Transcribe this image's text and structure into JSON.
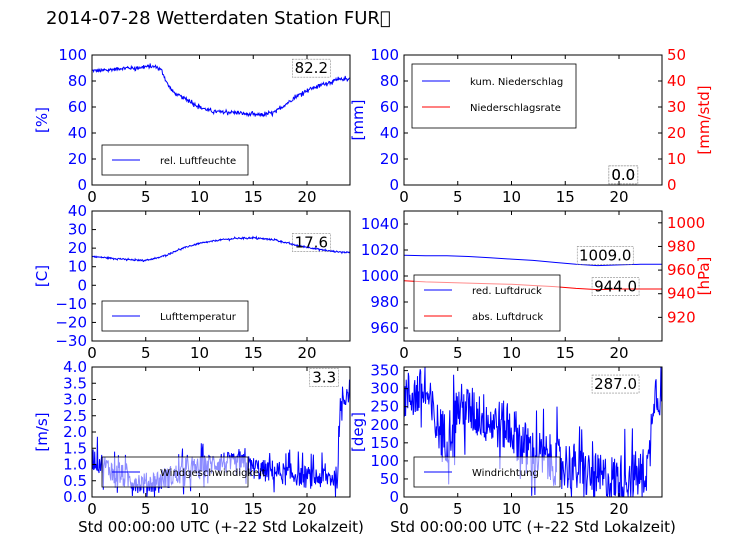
{
  "title": "2014-07-28 Wetterdaten Station FUR\u0000",
  "colors": {
    "left_axis": "#0000ff",
    "right_axis": "#ff0000",
    "text": "#000000"
  },
  "chart_data": [
    {
      "id": "humidity",
      "type": "line",
      "xlim": [
        0,
        24
      ],
      "xticks": [
        "0",
        "5",
        "10",
        "15",
        "20"
      ],
      "ylim": [
        0,
        100
      ],
      "yticks": [
        "0",
        "20",
        "40",
        "60",
        "80",
        "100"
      ],
      "ylabel": "[%]",
      "legend": "lower-left",
      "annotations": [
        "82.2"
      ],
      "series": [
        {
          "name": "rel. Luftfeuchte",
          "color": "#0000ff",
          "noise": 1.2,
          "x": [
            0,
            1,
            2,
            3,
            4,
            5,
            6,
            6.5,
            7,
            7.5,
            8,
            9,
            10,
            11,
            12,
            13,
            14,
            15,
            16,
            17,
            18,
            19,
            20,
            21,
            22,
            23,
            24
          ],
          "y": [
            88,
            88,
            89,
            90,
            90,
            91,
            91,
            88,
            78,
            72,
            69,
            65,
            60,
            57,
            56,
            56,
            55,
            54,
            54,
            56,
            62,
            68,
            73,
            76,
            79,
            81,
            82
          ]
        }
      ]
    },
    {
      "id": "precipitation",
      "type": "line",
      "xlim": [
        0,
        24
      ],
      "xticks": [
        "0",
        "5",
        "10",
        "15",
        "20"
      ],
      "ylim": [
        0,
        100
      ],
      "yticks": [
        "0",
        "20",
        "40",
        "60",
        "80",
        "100"
      ],
      "ylabel": "[mm]",
      "ylim_right": [
        0,
        50
      ],
      "yticks_right": [
        "0",
        "10",
        "20",
        "30",
        "40",
        "50"
      ],
      "ylabel_right": "[mm/std]",
      "legend": "top-left",
      "annotations": [
        "0.0",
        "0.0"
      ],
      "series": [
        {
          "name": "kum. Niederschlag",
          "color": "#0000ff",
          "axis": "left",
          "noise": 0,
          "x": [
            0,
            24
          ],
          "y": [
            0,
            0
          ]
        },
        {
          "name": "Niederschlagsrate",
          "color": "#ff0000",
          "axis": "right",
          "noise": 0,
          "x": [
            0,
            24
          ],
          "y": [
            0,
            0
          ]
        }
      ]
    },
    {
      "id": "temperature",
      "type": "line",
      "xlim": [
        0,
        24
      ],
      "xticks": [
        "0",
        "5",
        "10",
        "15",
        "20"
      ],
      "ylim": [
        -30,
        40
      ],
      "yticks": [
        "−30",
        "−20",
        "−10",
        "0",
        "10",
        "20",
        "30",
        "40"
      ],
      "ylabel": "[C]",
      "legend": "lower-left",
      "annotations": [
        "17.6"
      ],
      "series": [
        {
          "name": "Lufttemperatur",
          "color": "#0000ff",
          "noise": 0.35,
          "x": [
            0,
            1,
            2,
            3,
            4,
            5,
            6,
            7,
            8,
            9,
            10,
            11,
            12,
            13,
            14,
            15,
            16,
            17,
            18,
            19,
            20,
            21,
            22,
            23,
            24
          ],
          "y": [
            15.5,
            15,
            14.5,
            14,
            13.5,
            13.5,
            14.5,
            16.5,
            19,
            21,
            22.5,
            23.5,
            24.5,
            25,
            25.5,
            25.5,
            25,
            24.5,
            23,
            21.5,
            20.5,
            19.5,
            18.5,
            18,
            17.6
          ]
        }
      ]
    },
    {
      "id": "pressure",
      "type": "line",
      "xlim": [
        0,
        24
      ],
      "xticks": [
        "0",
        "5",
        "10",
        "15",
        "20"
      ],
      "ylim": [
        950,
        1050
      ],
      "yticks": [
        "960",
        "980",
        "1000",
        "1020",
        "1040"
      ],
      "ylabel": "",
      "ylim_right": [
        900,
        1010
      ],
      "yticks_right": [
        "920",
        "940",
        "960",
        "980",
        "1000"
      ],
      "ylabel_right": "[hPa]",
      "legend": "lower-left",
      "annotations": [
        "1009.0",
        "944.0"
      ],
      "series": [
        {
          "name": "red. Luftdruck",
          "color": "#0000ff",
          "axis": "left",
          "noise": 0,
          "x": [
            0,
            2,
            4,
            6,
            8,
            10,
            12,
            14,
            16,
            18,
            20,
            22,
            24
          ],
          "y": [
            1016,
            1015.5,
            1015.5,
            1015,
            1014,
            1013,
            1012,
            1010.5,
            1009,
            1008,
            1008.5,
            1009,
            1009
          ]
        },
        {
          "name": "abs. Luftdruck",
          "color": "#ff0000",
          "axis": "right",
          "noise": 0,
          "x": [
            0,
            2,
            4,
            6,
            8,
            10,
            12,
            14,
            16,
            18,
            20,
            22,
            24
          ],
          "y": [
            951,
            950,
            949.5,
            949,
            948.5,
            948,
            947,
            946,
            944.5,
            943.5,
            944,
            944,
            944
          ]
        }
      ]
    },
    {
      "id": "wind-speed",
      "type": "line",
      "xlim": [
        0,
        24
      ],
      "xticks": [
        "0",
        "5",
        "10",
        "15",
        "20"
      ],
      "xlabel": "Std 00:00:00 UTC (+-22 Std Lokalzeit)",
      "ylim": [
        0,
        4
      ],
      "yticks": [
        "0.0",
        "0.5",
        "1.0",
        "1.5",
        "2.0",
        "2.5",
        "3.0",
        "3.5",
        "4.0"
      ],
      "ylabel": "[m/s]",
      "legend": "lower-left",
      "annotations": [
        "3.3"
      ],
      "series": [
        {
          "name": "Windgeschwindigkeit",
          "color": "#0000ff",
          "noise": 0.35,
          "x": [
            0,
            1,
            2,
            3,
            4,
            5,
            6,
            7,
            8,
            9,
            10,
            11,
            12,
            13,
            14,
            15,
            16,
            17,
            18,
            19,
            20,
            21,
            22,
            22.8,
            23.2,
            24
          ],
          "y": [
            1.2,
            1.0,
            0.8,
            0.6,
            0.5,
            0.4,
            0.5,
            0.6,
            0.7,
            0.8,
            0.9,
            1.0,
            1.1,
            1.0,
            1.0,
            0.9,
            0.8,
            0.8,
            0.7,
            0.7,
            0.6,
            0.6,
            0.6,
            0.6,
            3.0,
            3.3
          ]
        }
      ]
    },
    {
      "id": "wind-direction",
      "type": "line",
      "xlim": [
        0,
        24
      ],
      "xticks": [
        "0",
        "5",
        "10",
        "15",
        "20"
      ],
      "xlabel": "Std 00:00:00 UTC (+-22 Std Lokalzeit)",
      "ylim": [
        0,
        360
      ],
      "yticks": [
        "0",
        "50",
        "100",
        "150",
        "200",
        "250",
        "300",
        "350"
      ],
      "ylabel": "[deg]",
      "legend": "lower-left",
      "annotations": [
        "287.0"
      ],
      "series": [
        {
          "name": "Windrichtung",
          "color": "#0000ff",
          "noise": 70,
          "x": [
            0,
            1,
            2,
            3,
            4,
            5,
            6,
            7,
            8,
            9,
            10,
            11,
            12,
            13,
            14,
            15,
            16,
            17,
            18,
            19,
            20,
            21,
            22,
            22.8,
            23.2,
            24
          ],
          "y": [
            280,
            285,
            290,
            200,
            160,
            250,
            240,
            230,
            210,
            200,
            190,
            150,
            120,
            110,
            100,
            90,
            80,
            60,
            50,
            50,
            50,
            60,
            60,
            90,
            295,
            287
          ]
        }
      ]
    }
  ]
}
